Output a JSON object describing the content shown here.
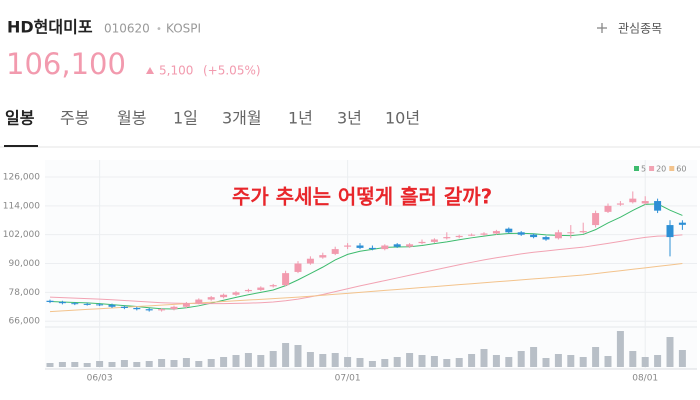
{
  "header": {
    "name": "HD현대미포",
    "code": "010620",
    "market": "KOSPI",
    "watchlist": "관심종목",
    "price": "106,100",
    "change": "5,100",
    "change_pct": "(+5.05%)"
  },
  "tabs": [
    "일봉",
    "주봉",
    "월봉",
    "1일",
    "3개월",
    "1년",
    "3년",
    "10년"
  ],
  "chart_data": {
    "type": "candlestick",
    "annotation": "주가 추세는 어떻게 흘러 갈까?",
    "categories": [
      null,
      null,
      null,
      null,
      "06/03",
      null,
      null,
      null,
      null,
      null,
      null,
      null,
      null,
      null,
      null,
      null,
      null,
      null,
      null,
      null,
      null,
      null,
      null,
      null,
      "07/01",
      null,
      null,
      null,
      null,
      null,
      null,
      null,
      null,
      null,
      null,
      null,
      null,
      null,
      null,
      null,
      null,
      null,
      null,
      null,
      null,
      null,
      null,
      null,
      "08/01",
      null,
      null,
      null
    ],
    "open": [
      74500,
      74000,
      73500,
      73200,
      73000,
      72800,
      72000,
      71500,
      71000,
      70500,
      71000,
      72000,
      73500,
      75000,
      76000,
      77000,
      78500,
      79000,
      80500,
      81000,
      86500,
      90000,
      92500,
      94000,
      97000,
      97500,
      96500,
      96000,
      98000,
      97000,
      98500,
      99000,
      100500,
      101000,
      102000,
      102000,
      102500,
      104500,
      103000,
      102000,
      101000,
      100500,
      103000,
      103000,
      106000,
      111500,
      114500,
      115500,
      115000,
      116000,
      106000,
      107000
    ],
    "high": [
      75000,
      74500,
      74000,
      73700,
      73500,
      73300,
      72500,
      72000,
      71500,
      71500,
      72500,
      74000,
      75500,
      76500,
      77500,
      78500,
      79500,
      80500,
      81500,
      87000,
      91000,
      93000,
      94500,
      97000,
      98500,
      98500,
      97500,
      98000,
      98500,
      98500,
      100000,
      100500,
      103000,
      102000,
      102500,
      103000,
      104000,
      105000,
      103500,
      102500,
      101500,
      104000,
      106000,
      107000,
      112000,
      115000,
      116000,
      120000,
      118000,
      117000,
      108000,
      108000
    ],
    "low": [
      73500,
      73000,
      72700,
      72500,
      72300,
      71500,
      71000,
      70500,
      70000,
      70000,
      70500,
      71500,
      73000,
      74500,
      75500,
      76500,
      78000,
      78500,
      80000,
      80500,
      86000,
      89500,
      92000,
      93500,
      96000,
      96000,
      95500,
      95500,
      96500,
      96500,
      98000,
      98500,
      100000,
      100500,
      101500,
      101500,
      102000,
      102500,
      101500,
      100500,
      99500,
      100000,
      100500,
      102500,
      105000,
      111000,
      114000,
      115000,
      114500,
      111000,
      93000,
      104000
    ],
    "close": [
      74000,
      73500,
      73200,
      73000,
      72800,
      72000,
      71500,
      71000,
      70500,
      71000,
      72000,
      73500,
      75000,
      76000,
      77000,
      78000,
      79000,
      80000,
      81000,
      86000,
      90000,
      92000,
      93500,
      96000,
      97500,
      96500,
      96000,
      97500,
      97000,
      98000,
      99000,
      100000,
      101000,
      101500,
      102000,
      102500,
      103500,
      103000,
      102000,
      101000,
      100000,
      103000,
      103000,
      103500,
      111000,
      114000,
      115000,
      117000,
      116000,
      112000,
      101000,
      106100
    ],
    "volume": [
      120000,
      150000,
      150000,
      120000,
      180000,
      150000,
      210000,
      150000,
      180000,
      240000,
      210000,
      270000,
      180000,
      240000,
      300000,
      360000,
      420000,
      360000,
      480000,
      720000,
      660000,
      450000,
      390000,
      420000,
      300000,
      270000,
      180000,
      240000,
      300000,
      420000,
      360000,
      330000,
      240000,
      270000,
      390000,
      540000,
      360000,
      300000,
      480000,
      600000,
      270000,
      390000,
      360000,
      300000,
      600000,
      330000,
      1080000,
      480000,
      300000,
      360000,
      900000,
      510000
    ],
    "series": [
      {
        "name": "5",
        "color": "#3dbb6e",
        "values": [
          74200,
          74000,
          73800,
          73600,
          73300,
          72900,
          72500,
          72100,
          71600,
          71200,
          71100,
          71600,
          72400,
          73500,
          74700,
          75900,
          77000,
          78000,
          79000,
          80800,
          83200,
          85800,
          88500,
          91500,
          93800,
          95100,
          95900,
          96700,
          96900,
          97000,
          97500,
          98300,
          99000,
          99900,
          100700,
          101400,
          102100,
          102500,
          102600,
          102400,
          101900,
          101700,
          101600,
          102100,
          104100,
          106900,
          109300,
          112100,
          114600,
          114800,
          112200,
          110000
        ]
      },
      {
        "name": "20",
        "color": "#f2a3b3",
        "values": [
          76000,
          75800,
          75600,
          75400,
          75200,
          74900,
          74600,
          74300,
          74000,
          73700,
          73500,
          73400,
          73300,
          73300,
          73300,
          73400,
          73500,
          73700,
          74000,
          74500,
          75200,
          76100,
          77100,
          78300,
          79500,
          80700,
          81800,
          82900,
          84000,
          85100,
          86200,
          87300,
          88400,
          89500,
          90500,
          91500,
          92400,
          93200,
          94000,
          94700,
          95200,
          95800,
          96300,
          96800,
          97600,
          98400,
          99200,
          100100,
          100900,
          101400,
          101500,
          101900
        ]
      },
      {
        "name": "60",
        "color": "#f3c38c",
        "values": [
          70000,
          70300,
          70600,
          70900,
          71200,
          71500,
          71800,
          72100,
          72400,
          72700,
          73000,
          73300,
          73600,
          73900,
          74200,
          74500,
          74800,
          75100,
          75400,
          75700,
          76000,
          76400,
          76800,
          77200,
          77600,
          78000,
          78400,
          78800,
          79200,
          79600,
          80000,
          80400,
          80800,
          81200,
          81600,
          82000,
          82400,
          82800,
          83200,
          83600,
          84000,
          84400,
          84800,
          85200,
          85800,
          86400,
          87000,
          87600,
          88200,
          88800,
          89400,
          90000
        ]
      }
    ],
    "up_color": "#f29aae",
    "down_color": "#2d8fd5",
    "volume_color": "#b8bfc7",
    "ylim": [
      64000,
      131000
    ],
    "yticks": [
      {
        "value": 66000,
        "label": "66,000"
      },
      {
        "value": 78000,
        "label": "78,000"
      },
      {
        "value": 90000,
        "label": "90,000"
      },
      {
        "value": 102000,
        "label": "102,000"
      },
      {
        "value": 114000,
        "label": "114,000"
      },
      {
        "value": 126000,
        "label": "126,000"
      }
    ],
    "grid": true
  }
}
